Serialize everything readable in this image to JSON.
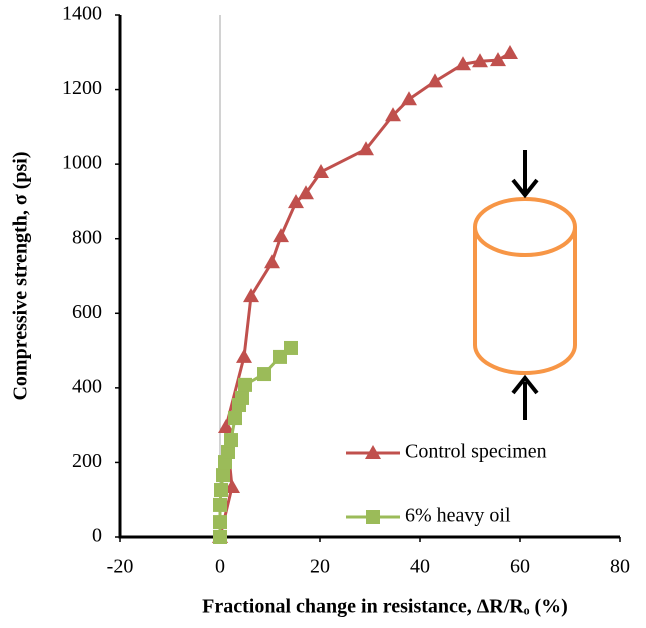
{
  "chart_data": {
    "type": "line",
    "x_label": "Fractional change in resistance, ΔR/Rₒ (%)",
    "y_label": "Compressive strength, σ (psi)",
    "xlim": [
      -20,
      80
    ],
    "xticks": [
      -20,
      0,
      20,
      40,
      60,
      80
    ],
    "ylim": [
      0,
      1400
    ],
    "yticks": [
      0,
      200,
      400,
      600,
      800,
      1000,
      1200,
      1400
    ],
    "series": [
      {
        "name": "Control specimen",
        "color": "#c0504d",
        "marker": "triangle",
        "x": [
          0,
          2.4,
          1.2,
          4.8,
          6.2,
          10.4,
          12.2,
          15.2,
          17.2,
          20.2,
          29.2,
          34.6,
          37.8,
          43,
          48.6,
          52,
          55.6,
          58
        ],
        "values": [
          0,
          134,
          295,
          483,
          646,
          737,
          807,
          898,
          922,
          979,
          1040,
          1131,
          1174,
          1222,
          1268,
          1276,
          1279,
          1298
        ]
      },
      {
        "name": "6% heavy oil",
        "color": "#9bbb59",
        "marker": "square",
        "x": [
          0,
          0,
          0,
          0.2,
          0.6,
          1,
          1.6,
          2.2,
          3,
          3.8,
          4.4,
          5,
          8.8,
          12,
          14.2
        ],
        "values": [
          0,
          40,
          86,
          126,
          166,
          201,
          228,
          260,
          319,
          354,
          373,
          408,
          437,
          483,
          507
        ]
      }
    ]
  }
}
